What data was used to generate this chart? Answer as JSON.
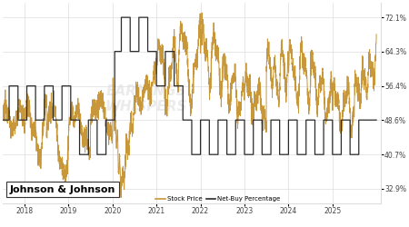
{
  "title": "Johnson & Johnson",
  "stock_color": "#C8973A",
  "netbuy_color": "#2B2B2B",
  "background_color": "#FFFFFF",
  "watermark_color": "#EBEBEB",
  "right_axis_values": [
    72.1,
    64.3,
    56.4,
    48.6,
    40.7,
    32.9
  ],
  "x_tick_labels": [
    "2018",
    "2019",
    "2020",
    "2021",
    "2022",
    "2023",
    "2024",
    "2025"
  ],
  "legend_stock": "Stock Price",
  "legend_netbuy": "Net-Buy Percentage",
  "grid_color": "#DDDDDD",
  "label_box_color": "#FFFFFF",
  "label_box_edge": "#333333",
  "ylim_low": 29.5,
  "ylim_high": 75.5,
  "xlim_low": 0.0,
  "xlim_high": 8.6
}
